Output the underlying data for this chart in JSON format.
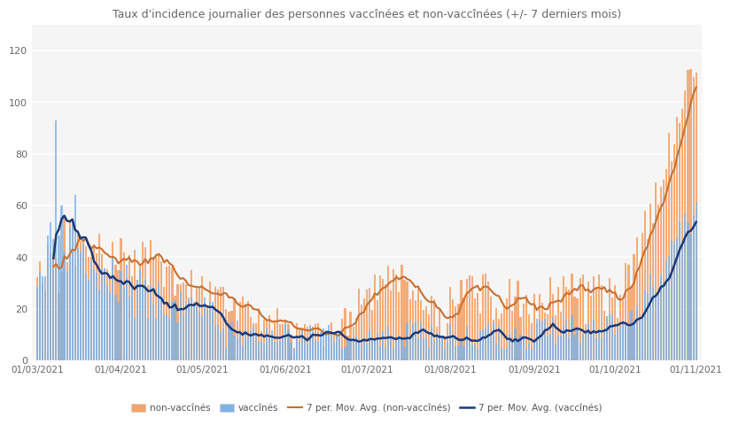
{
  "title": "Taux d'incidence journalier des personnes vaccînées et non-vaccînées (+/- 7 derniers mois)",
  "ylim": [
    0,
    130
  ],
  "yticks": [
    0,
    20,
    40,
    60,
    80,
    100,
    120
  ],
  "bar_color_unvacc": "#F4A46A",
  "bar_color_vacc": "#7EB3E8",
  "line_color_unvacc": "#C87030",
  "line_color_vacc": "#1A3A7A",
  "background_color": "#F5F5F5",
  "fig_background": "#FFFFFF",
  "legend_labels": [
    "non-vaccînés",
    "vaccînés",
    "7 per. Mov. Avg. (non-vaccînés)",
    "7 per. Mov. Avg. (vaccînés)"
  ],
  "xtick_labels": [
    "01/03/2021",
    "01/04/2021",
    "01/05/2021",
    "01/06/2021",
    "01/07/2021",
    "01/08/2021",
    "01/09/2021",
    "01/10/2021",
    "01/11/2021"
  ],
  "xtick_positions": [
    0,
    31,
    61,
    92,
    122,
    153,
    184,
    214,
    244
  ],
  "n_days": 245
}
